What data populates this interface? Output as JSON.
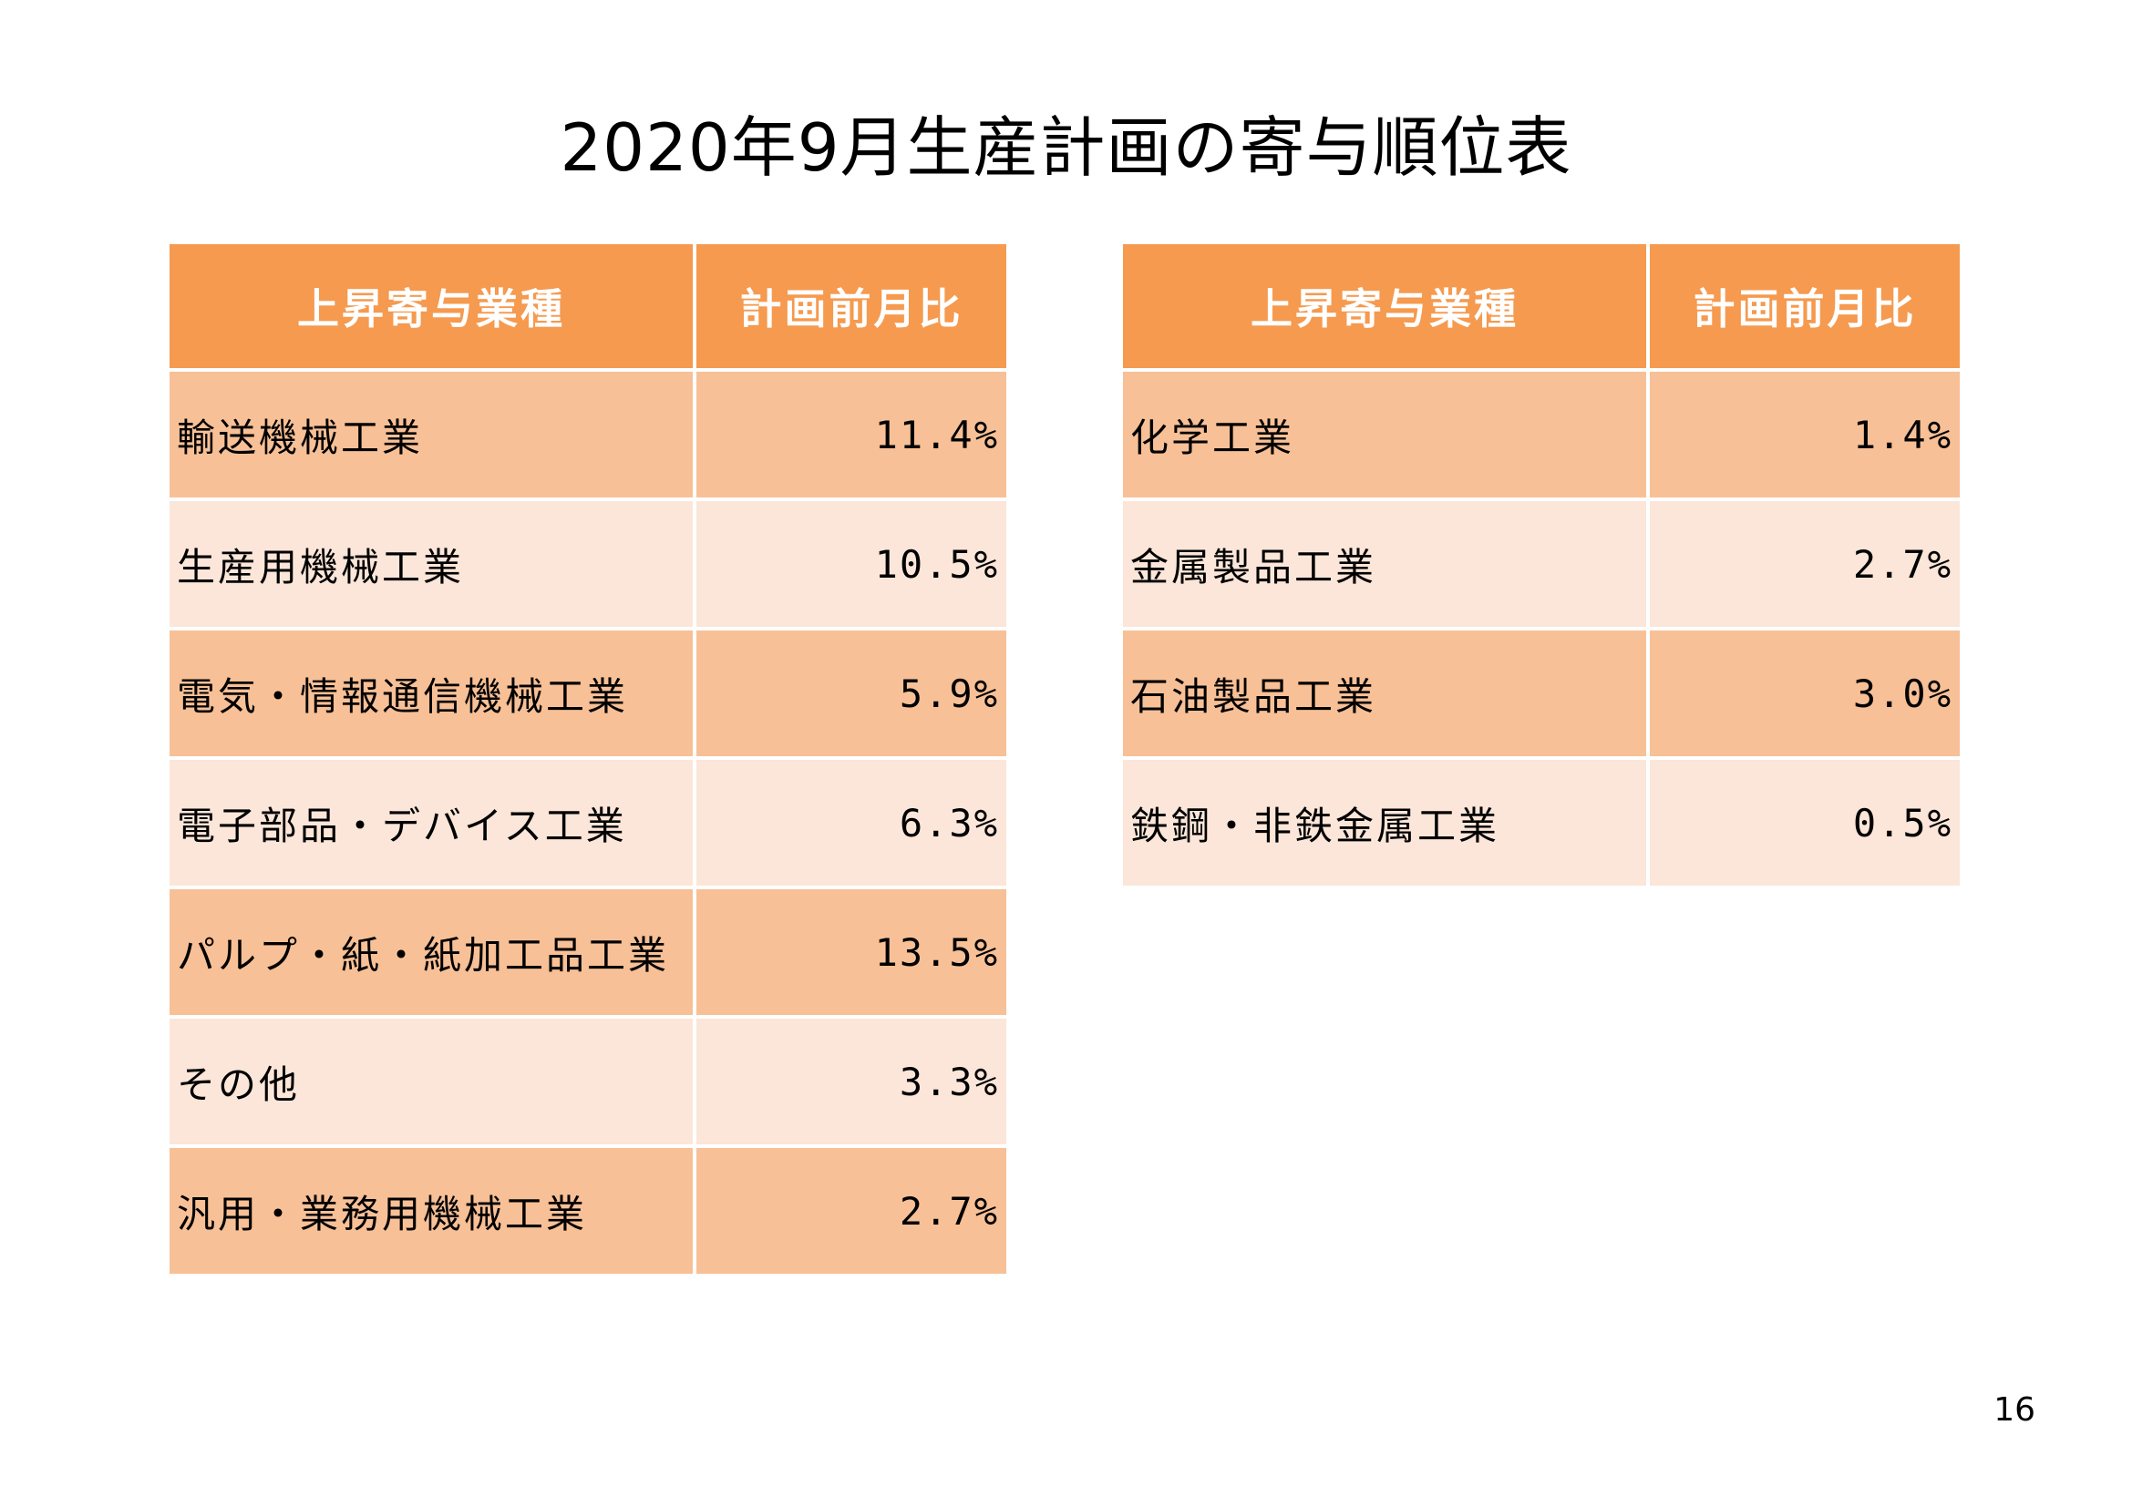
{
  "title": "2020年9月生産計画の寄与順位表",
  "page_number": "16",
  "left_table": {
    "headers": [
      "上昇寄与業種",
      "計画前月比"
    ],
    "rows": [
      {
        "industry": "輸送機械工業",
        "value": "11.4%"
      },
      {
        "industry": "生産用機械工業",
        "value": "10.5%"
      },
      {
        "industry": "電気・情報通信機械工業",
        "value": "5.9%"
      },
      {
        "industry": "電子部品・デバイス工業",
        "value": "6.3%"
      },
      {
        "industry": "パルプ・紙・紙加工品工業",
        "value": "13.5%"
      },
      {
        "industry": "その他",
        "value": "3.3%"
      },
      {
        "industry": "汎用・業務用機械工業",
        "value": "2.7%"
      }
    ]
  },
  "right_table": {
    "headers": [
      "上昇寄与業種",
      "計画前月比"
    ],
    "rows": [
      {
        "industry": "化学工業",
        "value": "1.4%"
      },
      {
        "industry": "金属製品工業",
        "value": "2.7%"
      },
      {
        "industry": "石油製品工業",
        "value": "3.0%"
      },
      {
        "industry": "鉄鋼・非鉄金属工業",
        "value": "0.5%"
      }
    ]
  },
  "colors": {
    "header_bg": "#f59a4f",
    "row_dark": "#f8c096",
    "row_light": "#fbe6d9"
  }
}
